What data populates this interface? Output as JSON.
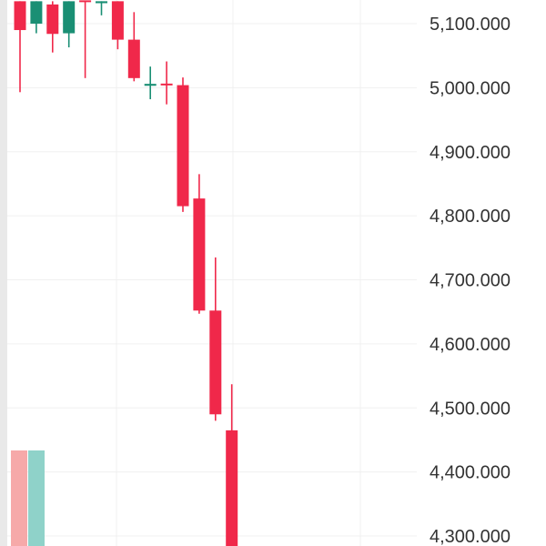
{
  "chart_data": {
    "type": "candlestick",
    "title": "",
    "xlabel": "",
    "ylabel": "",
    "ylim": [
      4265,
      5135
    ],
    "y_ticks": [
      "5,100.000",
      "5,000.000",
      "4,900.000",
      "4,800.000",
      "4,700.000",
      "4,600.000",
      "4,500.000",
      "4,400.000",
      "4,300.000"
    ],
    "y_tick_values": [
      5100,
      5000,
      4900,
      4800,
      4700,
      4600,
      4500,
      4400,
      4300
    ],
    "grid": true,
    "axis_position": "right",
    "up_color": "#1a8f74",
    "down_color": "#f0284a",
    "candles": [
      {
        "open": 5135,
        "close": 5090,
        "high": 5135,
        "low": 4993
      },
      {
        "open": 5100,
        "close": 5135,
        "high": 5135,
        "low": 5085
      },
      {
        "open": 5130,
        "close": 5084,
        "high": 5135,
        "low": 5055
      },
      {
        "open": 5085,
        "close": 5135,
        "high": 5135,
        "low": 5063
      },
      {
        "open": 5135,
        "close": 5133,
        "high": 5135,
        "low": 5015
      },
      {
        "open": 5132,
        "close": 5135,
        "high": 5135,
        "low": 5113
      },
      {
        "open": 5135,
        "close": 5075,
        "high": 5135,
        "low": 5060
      },
      {
        "open": 5075,
        "close": 5015,
        "high": 5118,
        "low": 5010
      },
      {
        "open": 5003,
        "close": 5006,
        "high": 5033,
        "low": 4982
      },
      {
        "open": 5005,
        "close": 5004,
        "high": 5041,
        "low": 4974
      },
      {
        "open": 5004,
        "close": 4815,
        "high": 5016,
        "low": 4806
      },
      {
        "open": 4827,
        "close": 4652,
        "high": 4865,
        "low": 4647
      },
      {
        "open": 4652,
        "close": 4490,
        "high": 4735,
        "low": 4480
      },
      {
        "open": 4465,
        "close": 4265,
        "high": 4537,
        "low": 4265
      }
    ],
    "volume": {
      "colors": [
        "#f6a9a9",
        "#8fd2c9"
      ],
      "relative": [
        1,
        1
      ]
    }
  }
}
